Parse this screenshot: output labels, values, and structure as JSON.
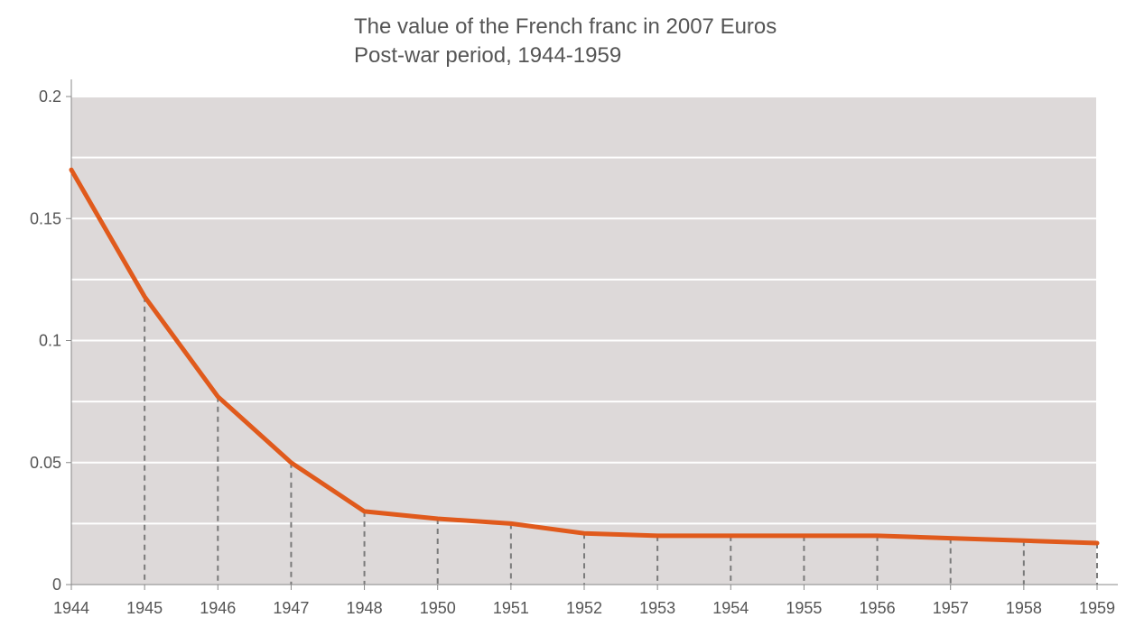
{
  "chart_data": {
    "type": "line",
    "title": "The value of the French franc in 2007 Euros",
    "subtitle": "Post-war period, 1944-1959",
    "xlabel": "",
    "ylabel": "",
    "categories": [
      "1944",
      "1945",
      "1946",
      "1947",
      "1948",
      "1950",
      "1951",
      "1952",
      "1953",
      "1954",
      "1955",
      "1956",
      "1957",
      "1958",
      "1959"
    ],
    "series": [
      {
        "values": [
          0.17,
          0.118,
          0.077,
          0.05,
          0.03,
          0.027,
          0.025,
          0.021,
          0.02,
          0.02,
          0.02,
          0.02,
          0.019,
          0.018,
          0.017
        ]
      }
    ],
    "y_ticks": [
      "0",
      "0.05",
      "0.1",
      "0.15",
      "0.2"
    ],
    "ylim": [
      0,
      0.2
    ],
    "grid": true,
    "drop_lines": true,
    "colors": {
      "line": "#e05a1c",
      "plot_background": "#ddd9d9",
      "gridline": "#ffffff",
      "drop_line": "#7a7a7a",
      "text": "#555555"
    }
  }
}
